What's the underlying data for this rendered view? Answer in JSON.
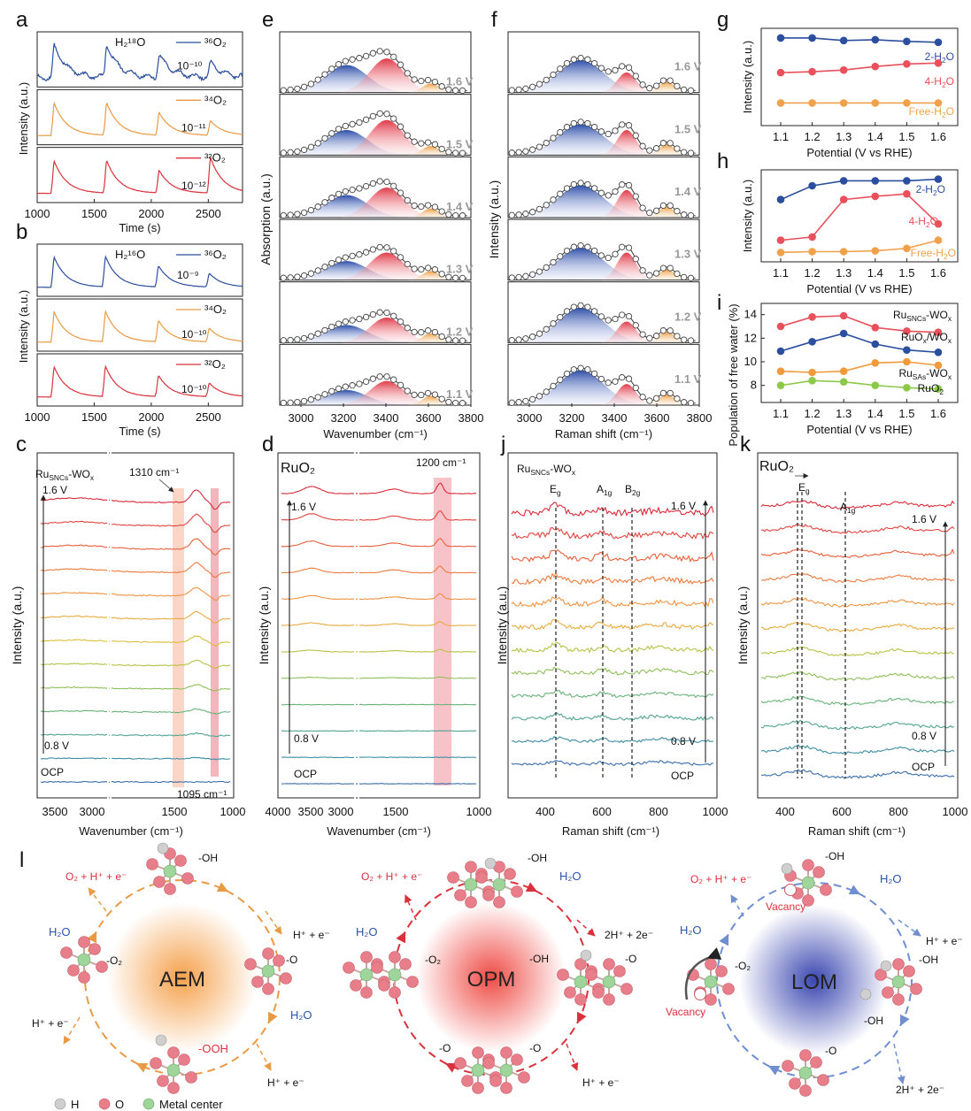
{
  "colors": {
    "blue": "#2c4e9e",
    "orange": "#e99a45",
    "red": "#d9323c",
    "pinkRed": "#e8505b",
    "grey": "#9aa0a6",
    "water": "#2a55a8"
  },
  "letters": [
    "a",
    "b",
    "c",
    "d",
    "e",
    "f",
    "g",
    "h",
    "i",
    "j",
    "k",
    "l"
  ],
  "panel_a": {
    "title": "H₂¹⁸O",
    "legend": [
      "³⁶O₂",
      "³⁴O₂",
      "³²O₂"
    ],
    "scales": [
      "10⁻¹⁰",
      "10⁻¹¹",
      "10⁻¹²"
    ],
    "peak_times_s": [
      1150,
      1610,
      2070,
      2520
    ]
  },
  "panel_b": {
    "title": "H₂¹⁶O",
    "legend": [
      "³⁶O₂",
      "³⁴O₂",
      "³²O₂"
    ],
    "scales": [
      "10⁻⁹",
      "10⁻¹⁰",
      "10⁻¹⁰"
    ],
    "peak_times_s": [
      1150,
      1600,
      2065,
      2510
    ]
  },
  "timeAxis": {
    "label": "Time (s)",
    "ticks": [
      "1000",
      "1500",
      "2000",
      "2500"
    ],
    "ylabel": "Intensity (a.u.)"
  },
  "panel_e": {
    "ylabel": "Absorption (a.u.)",
    "xlabel": "Wavenumber (cm⁻¹)",
    "ticks": [
      "3000",
      "3200",
      "3400",
      "3600",
      "3800"
    ],
    "potentials": [
      "1.6 V",
      "1.5 V",
      "1.4 V",
      "1.3 V",
      "1.2 V",
      "1.1 V"
    ]
  },
  "panel_f": {
    "ylabel": "Intensity (a.u.)",
    "xlabel": "Raman shift (cm⁻¹)",
    "ticks": [
      "3000",
      "3200",
      "3400",
      "3600",
      "3800"
    ],
    "potentials": [
      "1.6 V",
      "1.5 V",
      "1.4 V",
      "1.3 V",
      "1.2 V",
      "1.1 V"
    ]
  },
  "chart_data": [
    {
      "type": "line",
      "panel": "g",
      "xlabel": "Potential (V vs RHE)",
      "ylabel": "Intensity (a.u.)",
      "x": [
        1.1,
        1.2,
        1.3,
        1.4,
        1.5,
        1.6
      ],
      "series": [
        {
          "name": "2-H₂O",
          "values": [
            0.95,
            0.95,
            0.92,
            0.93,
            0.91,
            0.9
          ]
        },
        {
          "name": "4-H₂O",
          "values": [
            0.55,
            0.56,
            0.58,
            0.62,
            0.65,
            0.66
          ]
        },
        {
          "name": "Free-H₂O",
          "values": [
            0.2,
            0.2,
            0.2,
            0.2,
            0.2,
            0.2
          ]
        }
      ]
    },
    {
      "type": "line",
      "panel": "h",
      "xlabel": "Potential (V vs RHE)",
      "ylabel": "Intensity (a.u.)",
      "x": [
        1.1,
        1.2,
        1.3,
        1.4,
        1.5,
        1.6
      ],
      "series": [
        {
          "name": "2-H₂O",
          "values": [
            0.7,
            0.87,
            0.93,
            0.93,
            0.93,
            0.95
          ]
        },
        {
          "name": "4-H₂O",
          "values": [
            0.2,
            0.24,
            0.7,
            0.74,
            0.77,
            0.4
          ]
        },
        {
          "name": "Free-H₂O",
          "values": [
            0.05,
            0.06,
            0.06,
            0.07,
            0.1,
            0.2
          ]
        }
      ]
    },
    {
      "type": "line",
      "panel": "i",
      "xlabel": "Potential (V vs RHE)",
      "ylabel": "Population of free water (%)",
      "ylim": [
        7,
        14.5
      ],
      "yticks": [
        "8",
        "10",
        "12",
        "14"
      ],
      "x": [
        1.1,
        1.2,
        1.3,
        1.4,
        1.5,
        1.6
      ],
      "series": [
        {
          "name": "Ru_SNCs-WO_x",
          "values": [
            13.0,
            13.8,
            13.9,
            12.9,
            12.6,
            12.5
          ]
        },
        {
          "name": "RuO_x/WO_x",
          "values": [
            10.9,
            11.7,
            12.4,
            11.5,
            11.0,
            10.8
          ]
        },
        {
          "name": "Ru_SAs-WO_x",
          "values": [
            9.2,
            9.1,
            9.2,
            9.9,
            10.0,
            9.7
          ]
        },
        {
          "name": "RuO₂",
          "values": [
            8.0,
            8.4,
            8.3,
            8.0,
            7.8,
            7.7
          ]
        }
      ]
    }
  ],
  "potentialTicks": [
    "1.1",
    "1.2",
    "1.3",
    "1.4",
    "1.5",
    "1.6"
  ],
  "panel_c": {
    "title": "Ru",
    "title_sub": "SNCs",
    "title_end": "-WO",
    "title_end_sub": "x",
    "peak_top": "1310 cm⁻¹",
    "peak_bottom": "1095 cm⁻¹",
    "v_top": "1.6 V",
    "v_mid": "0.8 V",
    "ocp": "OCP",
    "ticks": [
      "3500",
      "3000",
      "1500",
      "1000"
    ],
    "xlabel": "Wavenumber (cm⁻¹)",
    "ylabel": "Intensity (a.u.)"
  },
  "panel_d": {
    "title": "RuO₂",
    "peak": "1200 cm⁻¹",
    "v_top": "1.6 V",
    "v_mid": "0.8 V",
    "ocp": "OCP",
    "ticks": [
      "4000",
      "3500",
      "3000",
      "1500",
      "1000"
    ],
    "xlabel": "Wavenumber (cm⁻¹)",
    "ylabel": "Intensity (a.u.)"
  },
  "panel_j": {
    "title": "Ru",
    "title_sub": "SNCs",
    "title_end": "-WO",
    "title_end_sub": "x",
    "modes": [
      "E",
      "A",
      "B"
    ],
    "mode_subs": [
      "g",
      "1g",
      "2g"
    ],
    "v_top": "1.6 V",
    "v_mid": "0.8 V",
    "ocp": "OCP",
    "ticks": [
      "400",
      "600",
      "800",
      "1000"
    ],
    "xlabel": "Raman shift (cm⁻¹)",
    "ylabel": "Intensity (a.u.)"
  },
  "panel_k": {
    "title": "RuO₂",
    "modes": [
      "E",
      "A"
    ],
    "mode_subs": [
      "g",
      "1g"
    ],
    "v_top": "1.6 V",
    "v_mid": "0.8 V",
    "ocp": "OCP",
    "ticks": [
      "400",
      "600",
      "800",
      "1000"
    ],
    "xlabel": "Raman shift (cm⁻¹)",
    "ylabel": "Intensity (a.u.)"
  },
  "panel_l": {
    "aem": {
      "name": "AEM",
      "top": "O₂ + H⁺ + e⁻",
      "water_l": "H₂O",
      "right": "H⁺ + e⁻",
      "water_r": "H₂O",
      "bl": "H⁺ + e⁻",
      "br": "H⁺ + e⁻",
      "s_oh": "-OH",
      "s_o": "-O",
      "s_ooh": "-OOH",
      "s_o2": "-O₂"
    },
    "opm": {
      "name": "OPM",
      "top": "O₂ + H⁺ + e⁻",
      "water_tr": "H₂O",
      "water_l": "H₂O",
      "right": "2H⁺ + 2e⁻",
      "br": "H⁺ + e⁻",
      "s_oh": "-OH",
      "s_o2": "-O₂",
      "s_oh2": "-OH",
      "s_o": "-O",
      "s_bo1": "-O",
      "s_bo2": "-O"
    },
    "lom": {
      "name": "LOM",
      "top": "O₂ + H⁺ + e⁻",
      "water_tr": "H₂O",
      "water_l": "H₂O",
      "right": "H⁺ + e⁻",
      "br": "2H⁺ + 2e⁻",
      "vac1": "Vacancy",
      "vac2": "Vacancy",
      "s_oh": "-OH",
      "s_o2": "-O₂",
      "s_oh2": "-OH",
      "s_oh3": "-OH",
      "s_o": "-O"
    },
    "legend": [
      "H",
      "O",
      "Metal center"
    ]
  }
}
